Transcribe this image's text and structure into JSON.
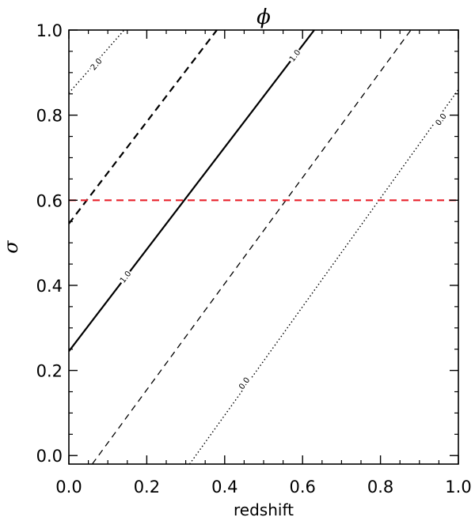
{
  "chart_data": {
    "type": "line",
    "title": "ϕ",
    "xlabel": "redshift",
    "ylabel": "σ",
    "xlim": [
      0.0,
      1.0
    ],
    "ylim": [
      -0.02,
      1.0
    ],
    "x_ticks": [
      "0.0",
      "0.2",
      "0.4",
      "0.6",
      "0.8",
      "1.0"
    ],
    "y_ticks": [
      "0.0",
      "0.2",
      "0.4",
      "0.6",
      "0.8",
      "1.0"
    ],
    "grid": false,
    "series": [
      {
        "label": "2.0",
        "style": "dotted",
        "weight": "thin",
        "x": [
          0.0,
          0.142
        ],
        "y": [
          0.852,
          1.0
        ],
        "label_at": [
          0.07,
          0.92
        ]
      },
      {
        "style": "dashed",
        "weight": "thick",
        "x": [
          0.0,
          0.38
        ],
        "y": [
          0.545,
          1.0
        ]
      },
      {
        "label": "1.0",
        "style": "solid",
        "weight": "thick",
        "x": [
          0.0,
          0.63
        ],
        "y": [
          0.245,
          1.0
        ],
        "label_at": [
          0.145,
          0.42
        ],
        "label_at_2": [
          0.58,
          0.94
        ]
      },
      {
        "style": "dashed",
        "weight": "thin",
        "x": [
          0.06,
          0.878
        ],
        "y": [
          -0.02,
          1.0
        ]
      },
      {
        "label": "0.0",
        "style": "dotted",
        "weight": "thin",
        "x": [
          0.31,
          1.0
        ],
        "y": [
          -0.02,
          0.86
        ],
        "label_at": [
          0.45,
          0.17
        ],
        "label_at_2": [
          0.955,
          0.79
        ]
      },
      {
        "style": "dashed",
        "weight": "thick",
        "color": "#e8212b",
        "x": [
          0.0,
          1.0
        ],
        "y": [
          0.6,
          0.6
        ]
      }
    ]
  }
}
